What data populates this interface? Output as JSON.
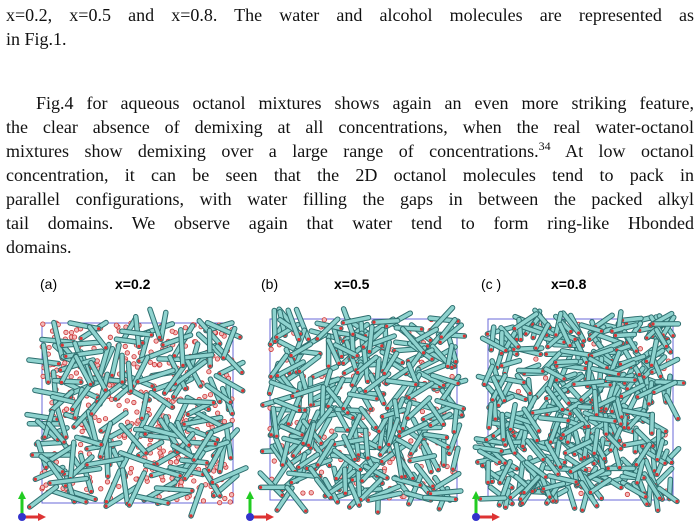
{
  "paragraphs": [
    {
      "lines": [
        [
          "x=0.2, x=0.5 and x=0.8.  The water and alcohol molecules are represented as"
        ],
        [
          "in Fig.1."
        ]
      ]
    },
    {
      "lines": [
        [
          "Fig.4 for aqueous octanol mixtures shows again an even more striking feature,"
        ],
        [
          "the clear absence of demixing at all concentrations, when the real water-octanol"
        ],
        [
          "mixtures show demixing over a large range of concentrations.",
          "34",
          " At low octanol"
        ],
        [
          "concentration, it can be seen that the 2D octanol molecules tend to pack in"
        ],
        [
          "parallel configurations, with water filling the gaps in between the packed alkyl"
        ],
        [
          "tail domains.  We observe again that water tend to form ring-like Hbonded"
        ],
        [
          "domains."
        ]
      ]
    }
  ],
  "figure": {
    "panels": [
      {
        "label": "(a)",
        "title": "x=0.2"
      },
      {
        "label": "(b)",
        "title": "x=0.5"
      },
      {
        "label": "(c )",
        "title": "x=0.8"
      }
    ]
  }
}
